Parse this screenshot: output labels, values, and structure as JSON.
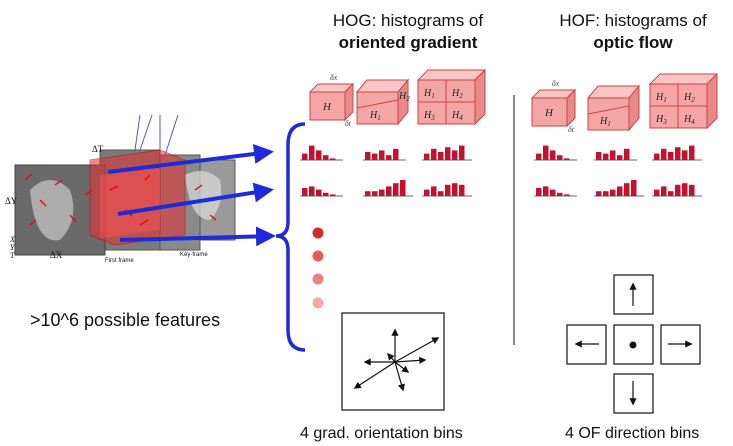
{
  "hog": {
    "title_line1": "HOG: histograms of",
    "title_line2": "oriented gradient",
    "caption": "4 grad. orientation bins"
  },
  "hof": {
    "title_line1": "HOF: histograms of",
    "title_line2": "optic flow",
    "caption": "4 OF direction bins"
  },
  "features_label": ">10^6 possible features",
  "cube_labels": {
    "h": "H",
    "h1": "H",
    "h2": "H",
    "h3": "H",
    "h4": "H",
    "s1": "1",
    "s2": "2",
    "s3": "3",
    "s4": "4",
    "dx": "δx",
    "dt": "δt"
  },
  "video_labels": {
    "dT": "ΔT",
    "dY": "ΔY",
    "dX": "ΔX",
    "first_frame": "First frame",
    "key_frame": "Key-frame",
    "X": "X",
    "Y": "Y",
    "T": "T"
  },
  "colors": {
    "cube_fill": "#f4a6a6",
    "cube_top": "#f9c5c5",
    "cube_side": "#e88a8a",
    "bar": "#c8102e",
    "arrow": "#1f2bd9",
    "dots": [
      "#d42a2a",
      "#e85a5a",
      "#f08080",
      "#f5a9a9"
    ]
  },
  "histograms": {
    "hog": [
      [
        4,
        9,
        6,
        3,
        1
      ],
      [
        5,
        4,
        6,
        3,
        7
      ],
      [
        4,
        7,
        5,
        8,
        6,
        9
      ],
      [
        5,
        6,
        4,
        2,
        1
      ],
      [
        3,
        3,
        4,
        6,
        8,
        10
      ],
      [
        4,
        6,
        3,
        7,
        8,
        7
      ]
    ],
    "hof": [
      [
        4,
        9,
        6,
        3,
        1
      ],
      [
        5,
        4,
        6,
        3,
        7
      ],
      [
        4,
        7,
        5,
        8,
        6,
        9
      ],
      [
        5,
        6,
        4,
        2,
        1
      ],
      [
        3,
        3,
        4,
        6,
        8,
        10
      ],
      [
        4,
        6,
        3,
        7,
        8,
        7
      ]
    ]
  }
}
